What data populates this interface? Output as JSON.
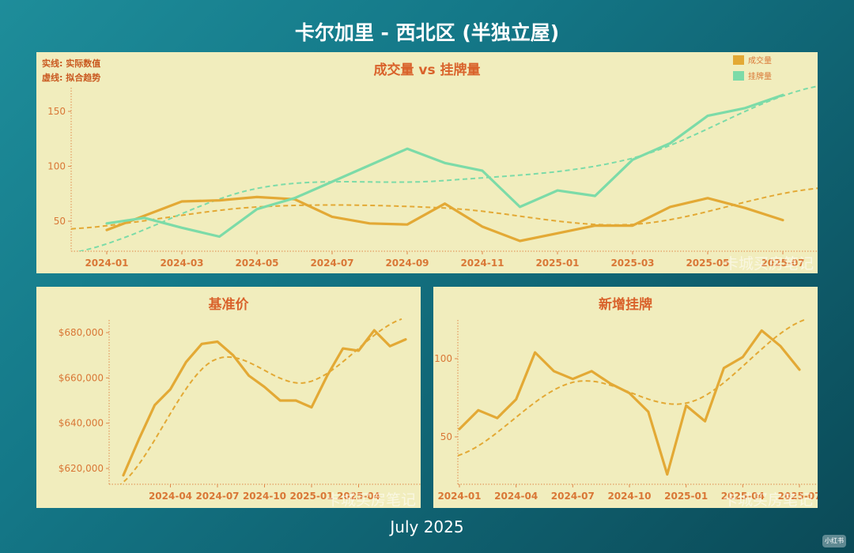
{
  "page": {
    "title": "卡尔加里 - 西北区 (半独立屋)",
    "footer": "July 2025",
    "watermark": "卡城买房笔记",
    "corner_logo": "小红书"
  },
  "colors": {
    "orange": "#e3a935",
    "green": "#7cdba8",
    "title_text": "#d9622b",
    "axis_text": "#d97736",
    "panel_bg": "#f1edbd"
  },
  "chart_data": [
    {
      "type": "line",
      "title": "成交量 vs 挂牌量",
      "notes": [
        "实线: 实际数值",
        "虚线: 拟合趋势"
      ],
      "legend_position": "top-right",
      "x": [
        "2024-01",
        "2024-02",
        "2024-03",
        "2024-04",
        "2024-05",
        "2024-06",
        "2024-07",
        "2024-08",
        "2024-09",
        "2024-10",
        "2024-11",
        "2024-12",
        "2025-01",
        "2025-02",
        "2025-03",
        "2025-04",
        "2025-05",
        "2025-06",
        "2025-07"
      ],
      "xticks": [
        "2024-01",
        "2024-03",
        "2024-05",
        "2024-07",
        "2024-09",
        "2024-11",
        "2025-01",
        "2025-03",
        "2025-05",
        "2025-07"
      ],
      "yticks": [
        50,
        100,
        150
      ],
      "ylim": [
        25,
        175
      ],
      "series": [
        {
          "name": "成交量",
          "color": "#e3a935",
          "values": [
            42,
            55,
            68,
            69,
            72,
            70,
            54,
            48,
            47,
            66,
            45,
            32,
            39,
            46,
            46,
            63,
            71,
            62,
            51
          ],
          "trend": [
            43,
            63,
            62,
            47,
            80
          ]
        },
        {
          "name": "挂牌量",
          "color": "#7cdba8",
          "values": [
            48,
            53,
            44,
            36,
            61,
            71,
            86,
            101,
            116,
            103,
            96,
            63,
            78,
            73,
            106,
            121,
            146,
            153,
            165
          ],
          "trend": [
            21,
            80,
            87,
            107,
            173
          ]
        }
      ]
    },
    {
      "type": "line",
      "title": "基准价",
      "x": [
        "2024-01",
        "2024-02",
        "2024-03",
        "2024-04",
        "2024-05",
        "2024-06",
        "2024-07",
        "2024-08",
        "2024-09",
        "2024-10",
        "2024-11",
        "2024-12",
        "2025-01",
        "2025-02",
        "2025-03",
        "2025-04",
        "2025-05",
        "2025-06",
        "2025-07"
      ],
      "xticks": [
        "2024-04",
        "2024-07",
        "2024-10",
        "2025-01",
        "2025-04"
      ],
      "yticks": [
        620000,
        640000,
        660000,
        680000
      ],
      "yticklabels": [
        "$620,000",
        "$640,000",
        "$660,000",
        "$680,000"
      ],
      "ylim": [
        612000,
        686000
      ],
      "color": "#e3a935",
      "values": [
        617000,
        633000,
        648000,
        655000,
        667000,
        675000,
        676000,
        670000,
        661000,
        656000,
        650000,
        650000,
        647000,
        661000,
        673000,
        672000,
        681000,
        674000,
        677000
      ],
      "trend": [
        612000,
        667500,
        658000,
        686000
      ]
    },
    {
      "type": "line",
      "title": "新增挂牌",
      "x": [
        "2024-01",
        "2024-02",
        "2024-03",
        "2024-04",
        "2024-05",
        "2024-06",
        "2024-07",
        "2024-08",
        "2024-09",
        "2024-10",
        "2024-11",
        "2024-12",
        "2025-01",
        "2025-02",
        "2025-03",
        "2025-04",
        "2025-05",
        "2025-06",
        "2025-07"
      ],
      "xticks": [
        "2024-01",
        "2024-04",
        "2024-07",
        "2024-10",
        "2025-01",
        "2025-04",
        "2025-07"
      ],
      "yticks": [
        50,
        100
      ],
      "ylim": [
        23,
        128
      ],
      "color": "#e3a935",
      "values": [
        55,
        67,
        62,
        74,
        104,
        92,
        87,
        92,
        84,
        78,
        66,
        26,
        70,
        60,
        94,
        101,
        118,
        108,
        93
      ],
      "trend": [
        38,
        85,
        72,
        125
      ]
    }
  ]
}
